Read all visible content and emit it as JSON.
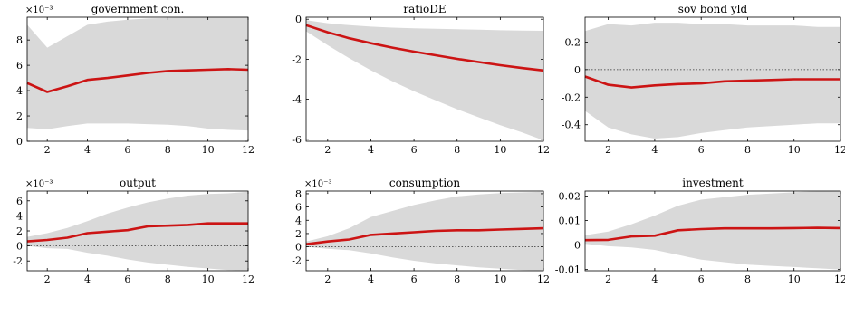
{
  "chart_data": [
    {
      "type": "area",
      "title": "government con.",
      "scale_label": "×10⁻³",
      "xlim": [
        1,
        12
      ],
      "ylim": [
        0,
        9.8
      ],
      "xticks": [
        2,
        4,
        6,
        8,
        10,
        12
      ],
      "yticks": [
        0,
        2,
        4,
        6,
        8
      ],
      "zero_line": false,
      "x": [
        1,
        2,
        3,
        4,
        5,
        6,
        7,
        8,
        9,
        10,
        11,
        12
      ],
      "series": [
        {
          "values": [
            4.6,
            3.9,
            4.35,
            4.85,
            5.0,
            5.2,
            5.4,
            5.55,
            5.6,
            5.65,
            5.7,
            5.65
          ]
        }
      ],
      "band": {
        "lower": [
          1.05,
          0.95,
          1.2,
          1.4,
          1.4,
          1.4,
          1.35,
          1.3,
          1.2,
          1.0,
          0.9,
          0.85
        ],
        "upper": [
          9.2,
          7.4,
          8.3,
          9.2,
          9.45,
          9.6,
          9.7,
          9.75,
          9.8,
          9.8,
          9.8,
          9.8
        ]
      }
    },
    {
      "type": "area",
      "title": "ratioDE",
      "scale_label": "",
      "xlim": [
        1,
        12
      ],
      "ylim": [
        -6.1,
        0.1
      ],
      "xticks": [
        2,
        4,
        6,
        8,
        10,
        12
      ],
      "yticks": [
        -6,
        -4,
        -2,
        0
      ],
      "zero_line": false,
      "x": [
        1,
        2,
        3,
        4,
        5,
        6,
        7,
        8,
        9,
        10,
        11,
        12
      ],
      "series": [
        {
          "values": [
            -0.3,
            -0.65,
            -0.95,
            -1.2,
            -1.42,
            -1.62,
            -1.8,
            -1.98,
            -2.14,
            -2.3,
            -2.44,
            -2.56
          ]
        }
      ],
      "band": {
        "lower": [
          -0.6,
          -1.3,
          -1.95,
          -2.55,
          -3.1,
          -3.6,
          -4.05,
          -4.5,
          -4.9,
          -5.3,
          -5.65,
          -6.05
        ],
        "upper": [
          -0.05,
          -0.2,
          -0.3,
          -0.37,
          -0.42,
          -0.45,
          -0.48,
          -0.5,
          -0.52,
          -0.55,
          -0.57,
          -0.58
        ]
      }
    },
    {
      "type": "area",
      "title": "sov bond yld",
      "scale_label": "",
      "xlim": [
        1,
        12
      ],
      "ylim": [
        -0.52,
        0.38
      ],
      "xticks": [
        2,
        4,
        6,
        8,
        10,
        12
      ],
      "yticks": [
        -0.4,
        -0.2,
        0,
        0.2
      ],
      "zero_line": true,
      "x": [
        1,
        2,
        3,
        4,
        5,
        6,
        7,
        8,
        9,
        10,
        11,
        12
      ],
      "series": [
        {
          "values": [
            -0.05,
            -0.11,
            -0.13,
            -0.115,
            -0.105,
            -0.1,
            -0.085,
            -0.08,
            -0.075,
            -0.07,
            -0.07,
            -0.07
          ]
        }
      ],
      "band": {
        "lower": [
          -0.3,
          -0.42,
          -0.47,
          -0.5,
          -0.49,
          -0.46,
          -0.44,
          -0.42,
          -0.41,
          -0.4,
          -0.39,
          -0.39
        ],
        "upper": [
          0.28,
          0.33,
          0.32,
          0.34,
          0.34,
          0.33,
          0.33,
          0.32,
          0.32,
          0.32,
          0.31,
          0.31
        ]
      }
    },
    {
      "type": "area",
      "title": "output",
      "scale_label": "×10⁻³",
      "xlim": [
        1,
        12
      ],
      "ylim": [
        -3.3,
        7.3
      ],
      "xticks": [
        2,
        4,
        6,
        8,
        10,
        12
      ],
      "yticks": [
        -2,
        0,
        2,
        4,
        6
      ],
      "zero_line": true,
      "x": [
        1,
        2,
        3,
        4,
        5,
        6,
        7,
        8,
        9,
        10,
        11,
        12
      ],
      "series": [
        {
          "values": [
            0.6,
            0.8,
            1.1,
            1.7,
            1.9,
            2.1,
            2.6,
            2.7,
            2.8,
            3.0,
            3.0,
            3.0
          ]
        }
      ],
      "band": {
        "lower": [
          0.0,
          -0.3,
          -0.4,
          -0.9,
          -1.3,
          -1.8,
          -2.2,
          -2.5,
          -2.8,
          -3.0,
          -3.2,
          -3.3
        ],
        "upper": [
          1.2,
          1.7,
          2.4,
          3.3,
          4.3,
          5.1,
          5.8,
          6.3,
          6.7,
          6.9,
          7.0,
          7.2
        ]
      }
    },
    {
      "type": "area",
      "title": "consumption",
      "scale_label": "×10⁻³",
      "xlim": [
        1,
        12
      ],
      "ylim": [
        -3.6,
        8.4
      ],
      "xticks": [
        2,
        4,
        6,
        8,
        10,
        12
      ],
      "yticks": [
        -2,
        0,
        2,
        4,
        6,
        8
      ],
      "zero_line": true,
      "x": [
        1,
        2,
        3,
        4,
        5,
        6,
        7,
        8,
        9,
        10,
        11,
        12
      ],
      "series": [
        {
          "values": [
            0.4,
            0.8,
            1.1,
            1.8,
            2.0,
            2.2,
            2.4,
            2.5,
            2.5,
            2.6,
            2.7,
            2.8
          ]
        }
      ],
      "band": {
        "lower": [
          0.0,
          -0.3,
          -0.5,
          -1.0,
          -1.6,
          -2.1,
          -2.5,
          -2.8,
          -3.1,
          -3.3,
          -3.5,
          -3.6
        ],
        "upper": [
          0.8,
          1.6,
          2.8,
          4.5,
          5.4,
          6.3,
          7.0,
          7.6,
          7.9,
          8.1,
          8.2,
          8.3
        ]
      }
    },
    {
      "type": "area",
      "title": "investment",
      "scale_label": "",
      "xlim": [
        1,
        12
      ],
      "ylim": [
        -0.0105,
        0.022
      ],
      "xticks": [
        2,
        4,
        6,
        8,
        10,
        12
      ],
      "yticks": [
        -0.01,
        0,
        0.01,
        0.02
      ],
      "zero_line": true,
      "x": [
        1,
        2,
        3,
        4,
        5,
        6,
        7,
        8,
        9,
        10,
        11,
        12
      ],
      "series": [
        {
          "values": [
            0.002,
            0.0021,
            0.0035,
            0.0038,
            0.006,
            0.0065,
            0.0068,
            0.0068,
            0.0068,
            0.0069,
            0.007,
            0.0069
          ]
        }
      ],
      "band": {
        "lower": [
          0.0005,
          -0.0005,
          -0.001,
          -0.002,
          -0.004,
          -0.006,
          -0.007,
          -0.008,
          -0.0085,
          -0.009,
          -0.0095,
          -0.01
        ],
        "upper": [
          0.004,
          0.0055,
          0.0085,
          0.012,
          0.016,
          0.0185,
          0.0195,
          0.0205,
          0.021,
          0.0215,
          0.022,
          0.022
        ]
      }
    }
  ],
  "colors": {
    "median_line": "#cc1414",
    "band_fill": "#d9d9d9",
    "zero_line": "#333333",
    "axes": "#000000"
  }
}
